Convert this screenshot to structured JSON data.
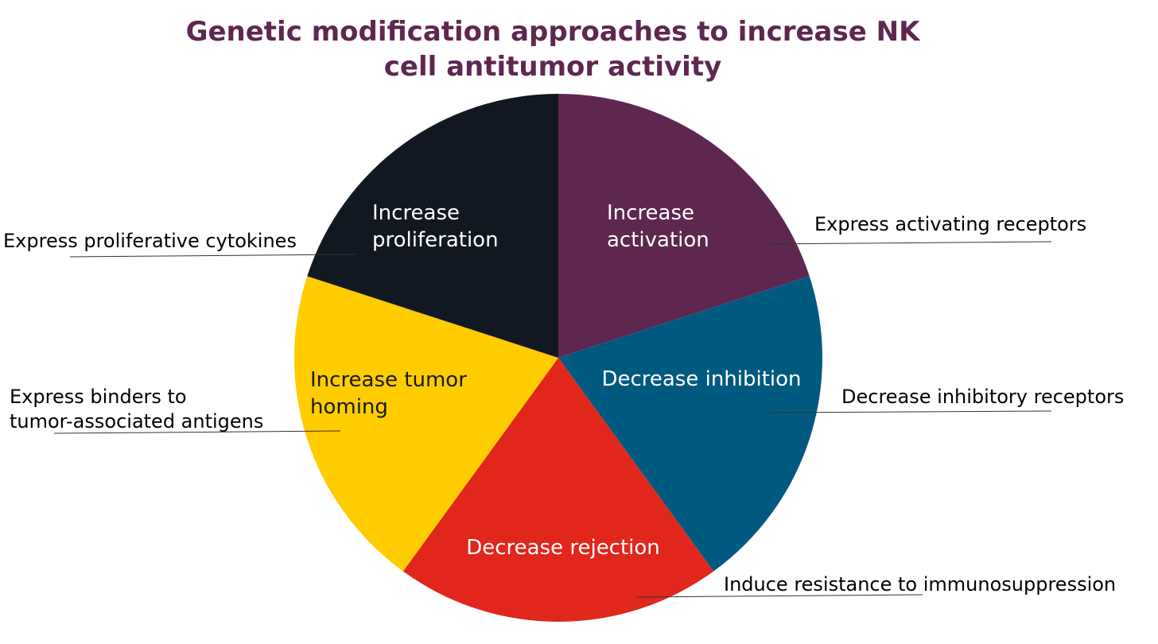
{
  "title": {
    "line1": "Genetic modification approaches to increase NK",
    "line2": "cell antitumor activity"
  },
  "segments": [
    {
      "id": "activation",
      "lines": [
        "Increase",
        "activation"
      ],
      "color": "#5e2750",
      "text_color": "#ffffff"
    },
    {
      "id": "inhibition",
      "lines": [
        "Decrease inhibition"
      ],
      "color": "#005a80",
      "text_color": "#ffffff"
    },
    {
      "id": "rejection",
      "lines": [
        "Decrease rejection"
      ],
      "color": "#e1261c",
      "text_color": "#ffffff"
    },
    {
      "id": "homing",
      "lines": [
        "Increase tumor",
        "homing"
      ],
      "color": "#ffcc00",
      "text_color": "#1a1a1a"
    },
    {
      "id": "proliferation",
      "lines": [
        "Increase",
        "proliferation"
      ],
      "color": "#121821",
      "text_color": "#ffffff"
    }
  ],
  "annotations": [
    {
      "id": "activation",
      "lines": [
        "Express activating receptors"
      ]
    },
    {
      "id": "inhibition",
      "lines": [
        "Decrease inhibitory receptors"
      ]
    },
    {
      "id": "rejection",
      "lines": [
        "Induce resistance to immunosuppression"
      ]
    },
    {
      "id": "homing",
      "lines": [
        "Express binders to",
        "tumor-associated antigens"
      ]
    },
    {
      "id": "proliferation",
      "lines": [
        "Express proliferative cytokines"
      ]
    }
  ]
}
